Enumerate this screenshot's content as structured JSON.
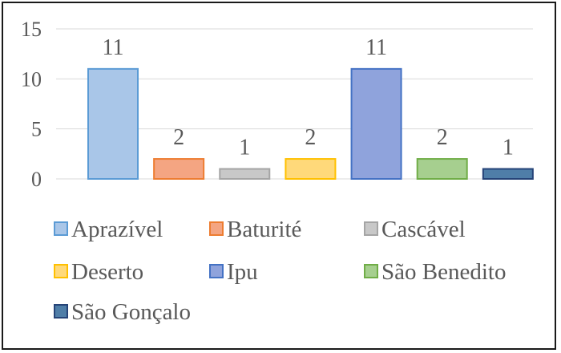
{
  "chart_data": {
    "type": "bar",
    "categories": [
      "Aprazível",
      "Baturité",
      "Cascável",
      "Deserto",
      "Ipu",
      "São Benedito",
      "São Gonçalo"
    ],
    "values": [
      11,
      2,
      1,
      2,
      11,
      2,
      1
    ],
    "data_labels": [
      "11",
      "2",
      "1",
      "2",
      "11",
      "2",
      "1"
    ],
    "colors": [
      "#a9c6e8",
      "#f4a582",
      "#c8c8c8",
      "#ffd97a",
      "#8fa3dc",
      "#a6cf8f",
      "#4f7ea8"
    ],
    "edge_colors": [
      "#5b9bd5",
      "#ed7d31",
      "#a5a5a5",
      "#ffc000",
      "#4472c4",
      "#70ad47",
      "#264478"
    ],
    "yticks": [
      "0",
      "5",
      "10",
      "15"
    ],
    "ylim": [
      0,
      15
    ],
    "grid": true,
    "legend_position": "bottom",
    "title": "",
    "xlabel": "",
    "ylabel": ""
  }
}
